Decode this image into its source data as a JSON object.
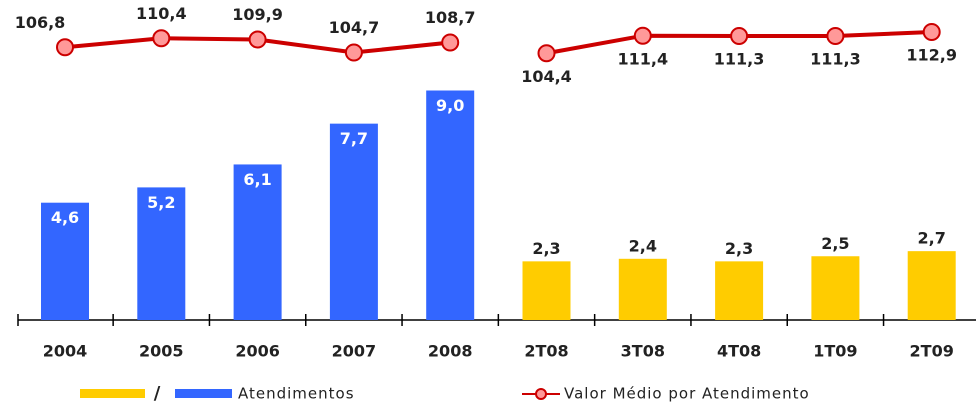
{
  "chart_data": {
    "type": "bar",
    "categories": [
      "2004",
      "2005",
      "2006",
      "2007",
      "2008",
      "2T08",
      "3T08",
      "4T08",
      "1T09",
      "2T09"
    ],
    "legend_separator": "/",
    "series": [
      {
        "name": "Atendimentos",
        "type": "bar",
        "colors": [
          "#3366ff",
          "#3366ff",
          "#3366ff",
          "#3366ff",
          "#3366ff",
          "#ffcc00",
          "#ffcc00",
          "#ffcc00",
          "#ffcc00",
          "#ffcc00"
        ],
        "values": [
          4.6,
          5.2,
          6.1,
          7.7,
          9.0,
          2.3,
          2.4,
          2.3,
          2.5,
          2.7
        ],
        "value_labels": [
          "4,6",
          "5,2",
          "6,1",
          "7,7",
          "9,0",
          "2,3",
          "2,4",
          "2,3",
          "2,5",
          "2,7"
        ]
      },
      {
        "name": "Valor Médio por Atendimento",
        "type": "line",
        "color": "#cc0000",
        "values": [
          106.8,
          110.4,
          109.9,
          104.7,
          108.7,
          104.4,
          111.4,
          111.3,
          111.3,
          112.9
        ],
        "value_labels": [
          "106,8",
          "110,4",
          "109,9",
          "104,7",
          "108,7",
          "104,4",
          "111,4",
          "111,3",
          "111,3",
          "112,9"
        ]
      }
    ]
  }
}
